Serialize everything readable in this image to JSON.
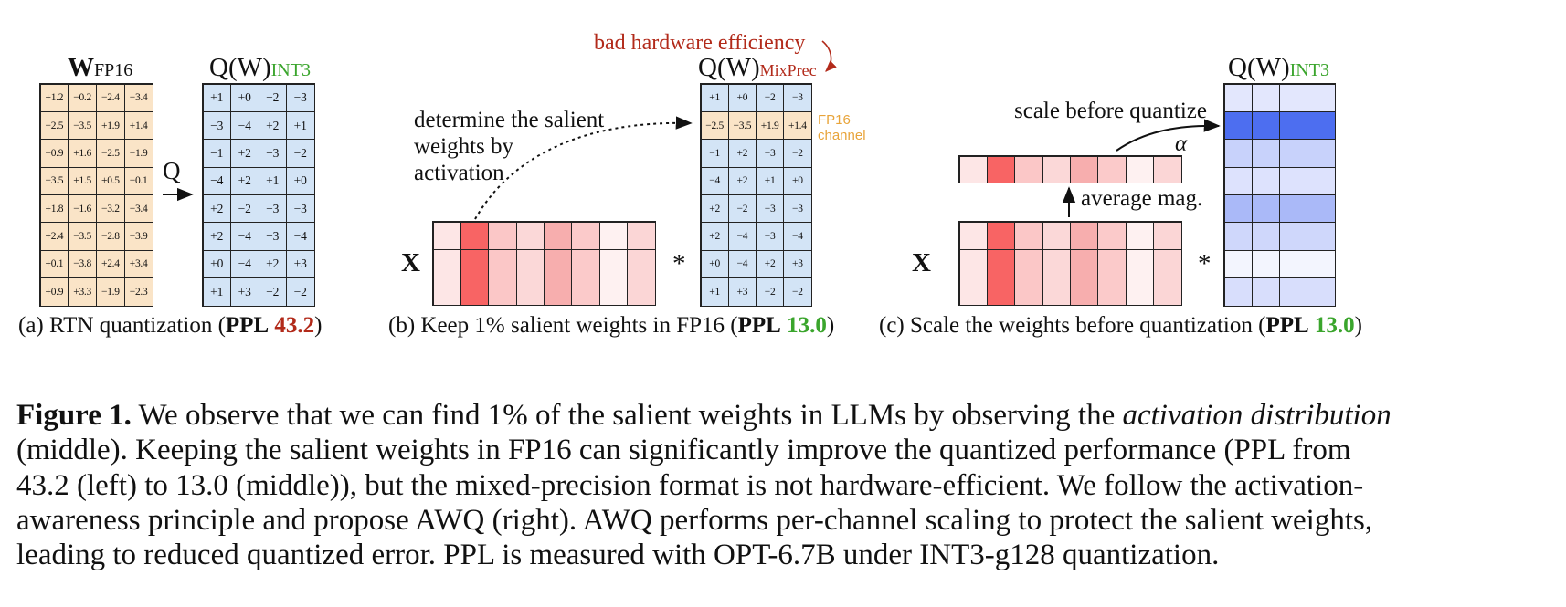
{
  "colors": {
    "fp16_fill": "#fae4c7",
    "int3_fill": "#d3e4f6",
    "red_text": "#b22a1a",
    "green_text": "#3aa52c",
    "orange_text": "#e8a43a",
    "act_red": [
      "#fde6e6",
      "#f86464",
      "#fbc7c7",
      "#fbd8d8",
      "#f7aeae",
      "#fbcaca",
      "#fef1f1",
      "#fbd6d6"
    ],
    "scale_blue": [
      "#e3e7fd",
      "#4d6ef0",
      "#c8d2fb",
      "#dde2fd",
      "#aab9f8",
      "#cfd7fb",
      "#f3f5fe",
      "#d8defc"
    ]
  },
  "panel_a": {
    "w_title_main": "W",
    "w_title_sub": "FP16",
    "q_title_main": "Q(W)",
    "q_title_sub": "INT3",
    "arrow_label": "Q",
    "w_values": [
      [
        "+1.2",
        "−0.2",
        "−2.4",
        "−3.4"
      ],
      [
        "−2.5",
        "−3.5",
        "+1.9",
        "+1.4"
      ],
      [
        "−0.9",
        "+1.6",
        "−2.5",
        "−1.9"
      ],
      [
        "−3.5",
        "+1.5",
        "+0.5",
        "−0.1"
      ],
      [
        "+1.8",
        "−1.6",
        "−3.2",
        "−3.4"
      ],
      [
        "+2.4",
        "−3.5",
        "−2.8",
        "−3.9"
      ],
      [
        "+0.1",
        "−3.8",
        "+2.4",
        "+3.4"
      ],
      [
        "+0.9",
        "+3.3",
        "−1.9",
        "−2.3"
      ]
    ],
    "q_values": [
      [
        "+1",
        "+0",
        "−2",
        "−3"
      ],
      [
        "−3",
        "−4",
        "+2",
        "+1"
      ],
      [
        "−1",
        "+2",
        "−3",
        "−2"
      ],
      [
        "−4",
        "+2",
        "+1",
        "+0"
      ],
      [
        "+2",
        "−2",
        "−3",
        "−3"
      ],
      [
        "+2",
        "−4",
        "−3",
        "−4"
      ],
      [
        "+0",
        "−4",
        "+2",
        "+3"
      ],
      [
        "+1",
        "+3",
        "−2",
        "−2"
      ]
    ],
    "caption_pre": "(a) RTN quantization (",
    "caption_ppl": "PPL",
    "caption_value": "43.2",
    "caption_post": ")"
  },
  "panel_b": {
    "annotation_red": "bad hardware efficiency",
    "salient_text": [
      "determine the salient",
      "weights by",
      "activation"
    ],
    "x_label": "X",
    "mult": "*",
    "q_title_main": "Q(W)",
    "q_title_sub": "MixPrec",
    "fp16_note": [
      "FP16",
      "channel"
    ],
    "q_values": [
      [
        "+1",
        "+0",
        "−2",
        "−3"
      ],
      [
        "−2.5",
        "−3.5",
        "+1.9",
        "+1.4"
      ],
      [
        "−1",
        "+2",
        "−3",
        "−2"
      ],
      [
        "−4",
        "+2",
        "+1",
        "+0"
      ],
      [
        "+2",
        "−2",
        "−3",
        "−3"
      ],
      [
        "+2",
        "−4",
        "−3",
        "−4"
      ],
      [
        "+0",
        "−4",
        "+2",
        "+3"
      ],
      [
        "+1",
        "+3",
        "−2",
        "−2"
      ]
    ],
    "fp16_row": 1,
    "caption_pre": "(b) Keep 1% salient weights in FP16 (",
    "caption_ppl": "PPL",
    "caption_value": "13.0",
    "caption_post": ")"
  },
  "panel_c": {
    "scale_text": "scale before quantize",
    "alpha": "α",
    "avg_text": "average mag.",
    "x_label": "X",
    "mult": "*",
    "q_title_main": "Q(W)",
    "q_title_sub": "INT3",
    "caption_pre": "(c) Scale the weights before quantization (",
    "caption_ppl": "PPL",
    "caption_value": "13.0",
    "caption_post": ")"
  },
  "figure_caption": {
    "label": "Figure 1.",
    "line1_a": " We observe that we can find 1% of the salient weights in LLMs by observing the ",
    "line1_em": "activation distribution",
    "line2": "(middle). Keeping the salient weights in FP16 can significantly improve the quantized performance (PPL from",
    "line3": "43.2 (left) to 13.0 (middle)), but the mixed-precision format is not hardware-efficient. We follow the activation-",
    "line4": "awareness principle and propose AWQ (right). AWQ performs per-channel scaling to protect the salient weights,",
    "line5": "leading to reduced quantized error. PPL is measured with OPT-6.7B under INT3-g128 quantization."
  }
}
